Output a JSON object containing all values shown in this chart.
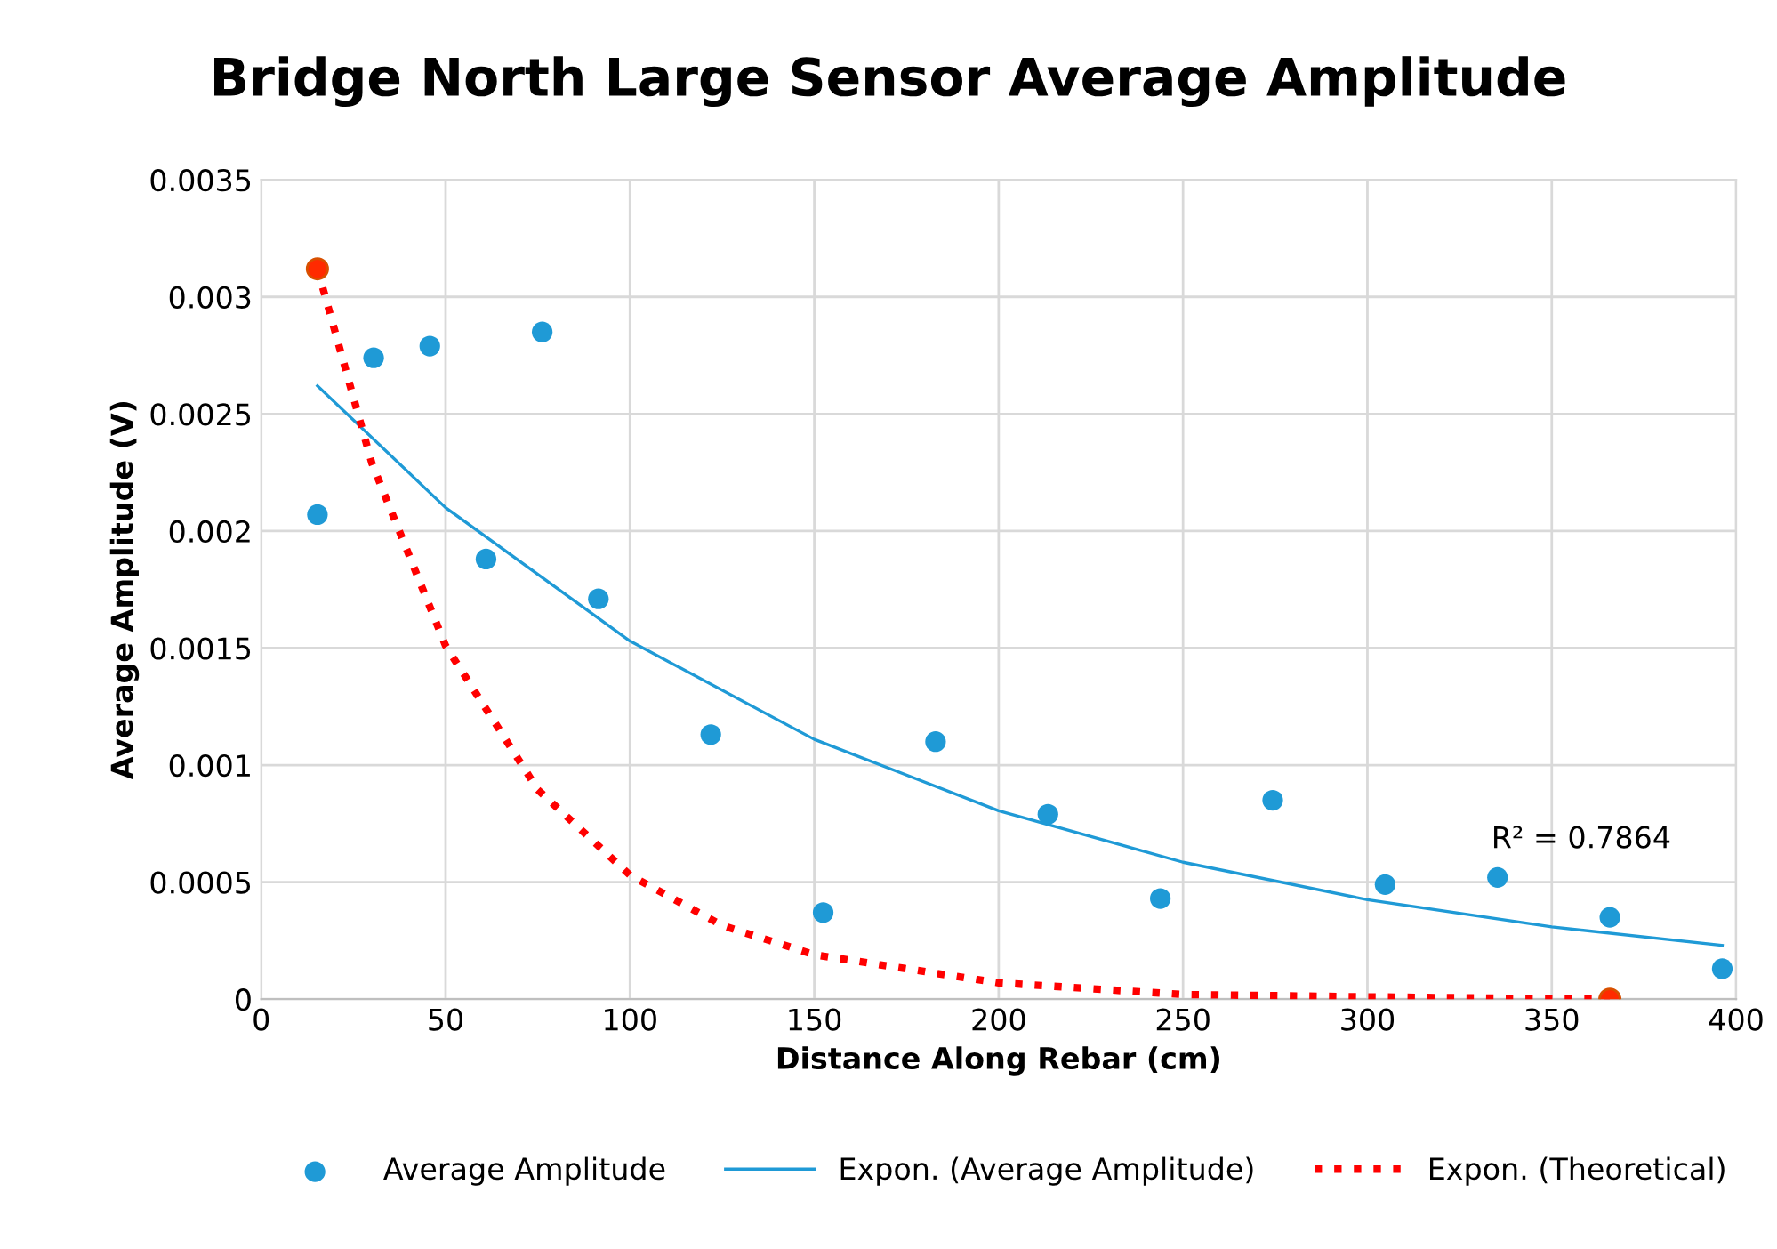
{
  "chart_data": {
    "type": "scatter",
    "title": "Bridge North Large Sensor Average Amplitude",
    "xlabel": "Distance Along Rebar (cm)",
    "ylabel": "Average Amplitude (V)",
    "xlim": [
      0,
      400
    ],
    "ylim": [
      0,
      0.0035
    ],
    "xticks": [
      0,
      50,
      100,
      150,
      200,
      250,
      300,
      350,
      400
    ],
    "yticks": [
      0,
      0.0005,
      0.001,
      0.0015,
      0.002,
      0.0025,
      0.003,
      0.0035
    ],
    "grid": true,
    "legend": "bottom",
    "annotations": [
      "R² = 0.7864"
    ],
    "series": [
      {
        "name": "Average Amplitude",
        "color": "#1f9ad6",
        "marker": "circle",
        "x": [
          15.24,
          30.48,
          45.72,
          60.96,
          76.2,
          91.44,
          121.92,
          152.4,
          182.88,
          213.36,
          243.84,
          274.32,
          304.8,
          335.28,
          365.76,
          396.24
        ],
        "values": [
          0.00207,
          0.00274,
          0.00279,
          0.00188,
          0.00285,
          0.00171,
          0.00113,
          0.00037,
          0.0011,
          0.00079,
          0.00043,
          0.00085,
          0.00049,
          0.00052,
          0.00035,
          0.00013
        ]
      },
      {
        "type": "line",
        "name": "Expon. (Average Amplitude)",
        "color": "#1f9ad6",
        "line_style": "solid",
        "marker": "none",
        "x": [
          15.24,
          50,
          100,
          150,
          200,
          250,
          300,
          350,
          396.24
        ],
        "values": [
          0.00262,
          0.0021,
          0.00153,
          0.00111,
          0.000805,
          0.000585,
          0.000425,
          0.000309,
          0.00023
        ]
      },
      {
        "type": "line",
        "name": "Expon. (Theoretical)",
        "color": "#ff0000",
        "line_style": "dotted",
        "marker": "none",
        "x": [
          15.24,
          30,
          50,
          75,
          100,
          125,
          150,
          200,
          250,
          300,
          365.76
        ],
        "values": [
          0.00312,
          0.00229,
          0.00151,
          0.000895,
          0.00053,
          0.000315,
          0.00019,
          7e-05,
          2e-05,
          1e-05,
          0
        ]
      },
      {
        "color": "#ff2a00",
        "marker": "circle",
        "x": [
          15.24,
          365.76
        ],
        "values": [
          0.00312,
          0
        ]
      }
    ]
  }
}
